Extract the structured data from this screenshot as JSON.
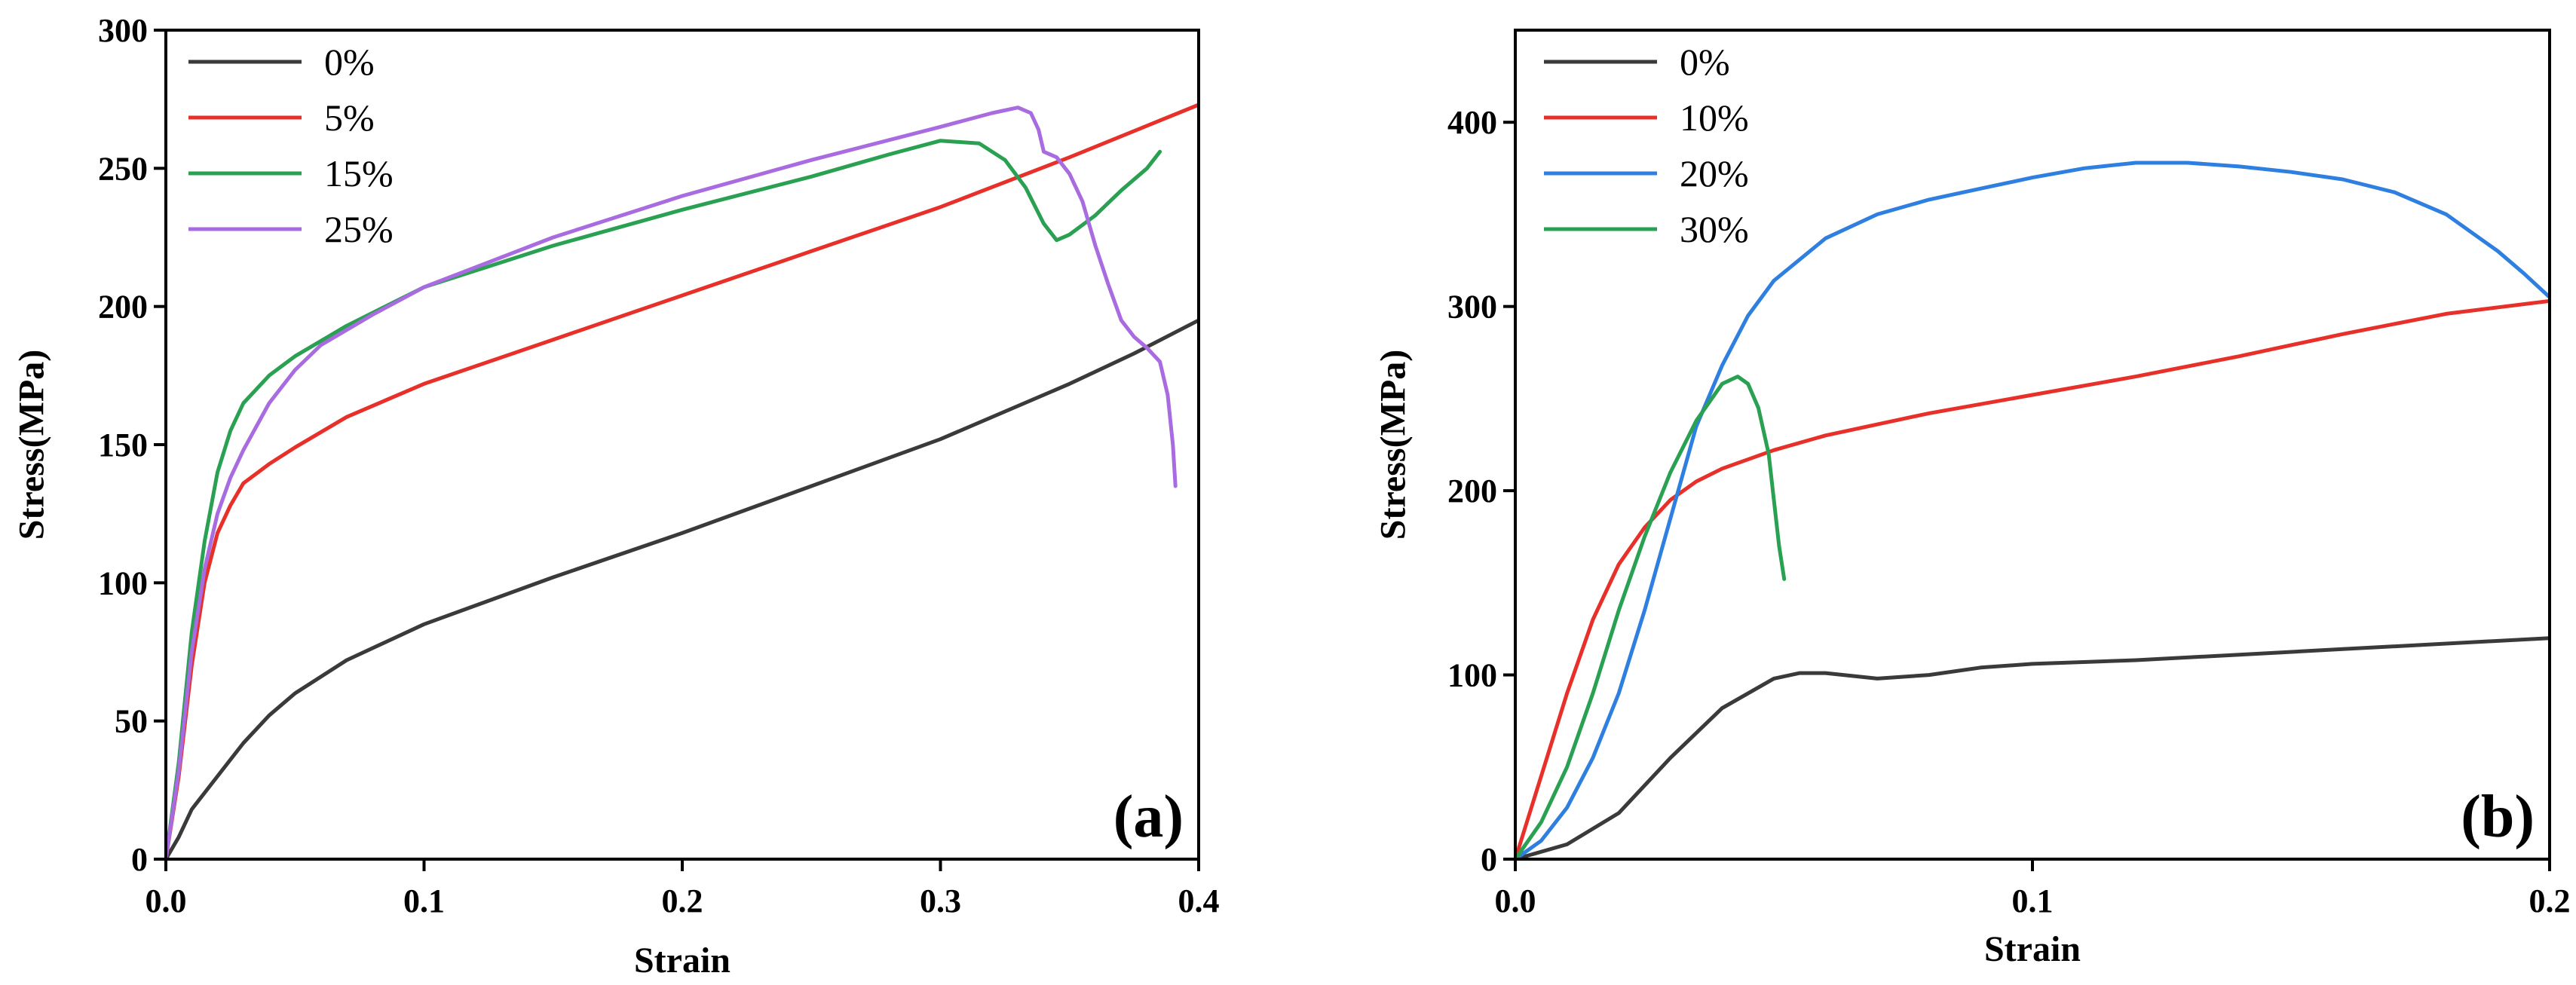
{
  "chart_data": [
    {
      "type": "line",
      "panel_label": "(a)",
      "xlabel": "Strain",
      "ylabel": "Stress(MPa)",
      "xlim": [
        0.0,
        0.4
      ],
      "ylim": [
        0,
        300
      ],
      "x_ticks": [
        0.0,
        0.1,
        0.2,
        0.3,
        0.4
      ],
      "x_tick_labels": [
        "0.0",
        "0.1",
        "0.2",
        "0.3",
        "0.4"
      ],
      "y_ticks": [
        0,
        50,
        100,
        150,
        200,
        250,
        300
      ],
      "y_tick_labels": [
        "0",
        "50",
        "100",
        "150",
        "200",
        "250",
        "300"
      ],
      "legend_position": "top-left",
      "grid": false,
      "series": [
        {
          "name": "0%",
          "color": "#3a3a3a",
          "points": [
            [
              0.0,
              0
            ],
            [
              0.005,
              8
            ],
            [
              0.01,
              18
            ],
            [
              0.02,
              30
            ],
            [
              0.03,
              42
            ],
            [
              0.04,
              52
            ],
            [
              0.05,
              60
            ],
            [
              0.07,
              72
            ],
            [
              0.1,
              85
            ],
            [
              0.15,
              102
            ],
            [
              0.2,
              118
            ],
            [
              0.25,
              135
            ],
            [
              0.3,
              152
            ],
            [
              0.35,
              172
            ],
            [
              0.375,
              183
            ],
            [
              0.4,
              195
            ]
          ]
        },
        {
          "name": "5%",
          "color": "#e8302a",
          "points": [
            [
              0.0,
              0
            ],
            [
              0.005,
              30
            ],
            [
              0.01,
              70
            ],
            [
              0.015,
              100
            ],
            [
              0.02,
              118
            ],
            [
              0.025,
              128
            ],
            [
              0.03,
              136
            ],
            [
              0.04,
              143
            ],
            [
              0.05,
              149
            ],
            [
              0.07,
              160
            ],
            [
              0.1,
              172
            ],
            [
              0.15,
              188
            ],
            [
              0.2,
              204
            ],
            [
              0.25,
              220
            ],
            [
              0.3,
              236
            ],
            [
              0.35,
              254
            ],
            [
              0.4,
              273
            ]
          ]
        },
        {
          "name": "15%",
          "color": "#2aa052",
          "points": [
            [
              0.0,
              0
            ],
            [
              0.005,
              35
            ],
            [
              0.01,
              82
            ],
            [
              0.015,
              115
            ],
            [
              0.02,
              140
            ],
            [
              0.025,
              155
            ],
            [
              0.03,
              165
            ],
            [
              0.04,
              175
            ],
            [
              0.05,
              182
            ],
            [
              0.07,
              193
            ],
            [
              0.1,
              207
            ],
            [
              0.15,
              222
            ],
            [
              0.2,
              235
            ],
            [
              0.25,
              247
            ],
            [
              0.28,
              255
            ],
            [
              0.3,
              260
            ],
            [
              0.315,
              259
            ],
            [
              0.325,
              253
            ],
            [
              0.333,
              243
            ],
            [
              0.34,
              230
            ],
            [
              0.345,
              224
            ],
            [
              0.35,
              226
            ],
            [
              0.36,
              233
            ],
            [
              0.37,
              242
            ],
            [
              0.38,
              250
            ],
            [
              0.385,
              256
            ]
          ]
        },
        {
          "name": "25%",
          "color": "#a86be0",
          "points": [
            [
              0.0,
              0
            ],
            [
              0.005,
              32
            ],
            [
              0.01,
              75
            ],
            [
              0.015,
              105
            ],
            [
              0.02,
              125
            ],
            [
              0.025,
              138
            ],
            [
              0.03,
              148
            ],
            [
              0.04,
              165
            ],
            [
              0.05,
              177
            ],
            [
              0.06,
              186
            ],
            [
              0.08,
              197
            ],
            [
              0.1,
              207
            ],
            [
              0.15,
              225
            ],
            [
              0.2,
              240
            ],
            [
              0.25,
              253
            ],
            [
              0.3,
              265
            ],
            [
              0.32,
              270
            ],
            [
              0.33,
              272
            ],
            [
              0.335,
              270
            ],
            [
              0.338,
              264
            ],
            [
              0.34,
              256
            ],
            [
              0.345,
              254
            ],
            [
              0.35,
              248
            ],
            [
              0.355,
              238
            ],
            [
              0.36,
              222
            ],
            [
              0.365,
              208
            ],
            [
              0.37,
              195
            ],
            [
              0.375,
              189
            ],
            [
              0.38,
              185
            ],
            [
              0.385,
              180
            ],
            [
              0.388,
              168
            ],
            [
              0.39,
              150
            ],
            [
              0.391,
              135
            ]
          ]
        }
      ]
    },
    {
      "type": "line",
      "panel_label": "(b)",
      "xlabel": "Strain",
      "ylabel": "Stress(MPa)",
      "xlim": [
        0.0,
        0.2
      ],
      "ylim": [
        0,
        450
      ],
      "x_ticks": [
        0.0,
        0.1,
        0.2
      ],
      "x_tick_labels": [
        "0.0",
        "0.1",
        "0.2"
      ],
      "y_ticks": [
        0,
        100,
        200,
        300,
        400
      ],
      "y_tick_labels": [
        "0",
        "100",
        "200",
        "300",
        "400"
      ],
      "legend_position": "top-left",
      "grid": false,
      "series": [
        {
          "name": "0%",
          "color": "#3a3a3a",
          "points": [
            [
              0.0,
              0
            ],
            [
              0.01,
              8
            ],
            [
              0.02,
              25
            ],
            [
              0.03,
              55
            ],
            [
              0.04,
              82
            ],
            [
              0.05,
              98
            ],
            [
              0.055,
              101
            ],
            [
              0.06,
              101
            ],
            [
              0.07,
              98
            ],
            [
              0.08,
              100
            ],
            [
              0.09,
              104
            ],
            [
              0.1,
              106
            ],
            [
              0.12,
              108
            ],
            [
              0.14,
              111
            ],
            [
              0.16,
              114
            ],
            [
              0.18,
              117
            ],
            [
              0.2,
              120
            ]
          ]
        },
        {
          "name": "10%",
          "color": "#e8302a",
          "points": [
            [
              0.0,
              0
            ],
            [
              0.005,
              45
            ],
            [
              0.01,
              90
            ],
            [
              0.015,
              130
            ],
            [
              0.02,
              160
            ],
            [
              0.025,
              180
            ],
            [
              0.03,
              195
            ],
            [
              0.035,
              205
            ],
            [
              0.04,
              212
            ],
            [
              0.05,
              222
            ],
            [
              0.06,
              230
            ],
            [
              0.08,
              242
            ],
            [
              0.1,
              252
            ],
            [
              0.12,
              262
            ],
            [
              0.14,
              273
            ],
            [
              0.16,
              285
            ],
            [
              0.18,
              296
            ],
            [
              0.2,
              303
            ]
          ]
        },
        {
          "name": "20%",
          "color": "#2f7fe0",
          "points": [
            [
              0.0,
              0
            ],
            [
              0.005,
              10
            ],
            [
              0.01,
              28
            ],
            [
              0.015,
              55
            ],
            [
              0.02,
              90
            ],
            [
              0.025,
              135
            ],
            [
              0.03,
              185
            ],
            [
              0.035,
              235
            ],
            [
              0.04,
              268
            ],
            [
              0.045,
              295
            ],
            [
              0.05,
              314
            ],
            [
              0.06,
              337
            ],
            [
              0.07,
              350
            ],
            [
              0.08,
              358
            ],
            [
              0.09,
              364
            ],
            [
              0.1,
              370
            ],
            [
              0.11,
              375
            ],
            [
              0.12,
              378
            ],
            [
              0.13,
              378
            ],
            [
              0.14,
              376
            ],
            [
              0.15,
              373
            ],
            [
              0.16,
              369
            ],
            [
              0.17,
              362
            ],
            [
              0.18,
              350
            ],
            [
              0.19,
              330
            ],
            [
              0.195,
              318
            ],
            [
              0.2,
              305
            ]
          ]
        },
        {
          "name": "30%",
          "color": "#2aa052",
          "points": [
            [
              0.0,
              0
            ],
            [
              0.005,
              20
            ],
            [
              0.01,
              50
            ],
            [
              0.015,
              90
            ],
            [
              0.02,
              135
            ],
            [
              0.025,
              175
            ],
            [
              0.03,
              210
            ],
            [
              0.035,
              238
            ],
            [
              0.04,
              258
            ],
            [
              0.043,
              262
            ],
            [
              0.045,
              258
            ],
            [
              0.047,
              245
            ],
            [
              0.049,
              220
            ],
            [
              0.05,
              195
            ],
            [
              0.051,
              170
            ],
            [
              0.052,
              152
            ]
          ]
        }
      ]
    }
  ]
}
